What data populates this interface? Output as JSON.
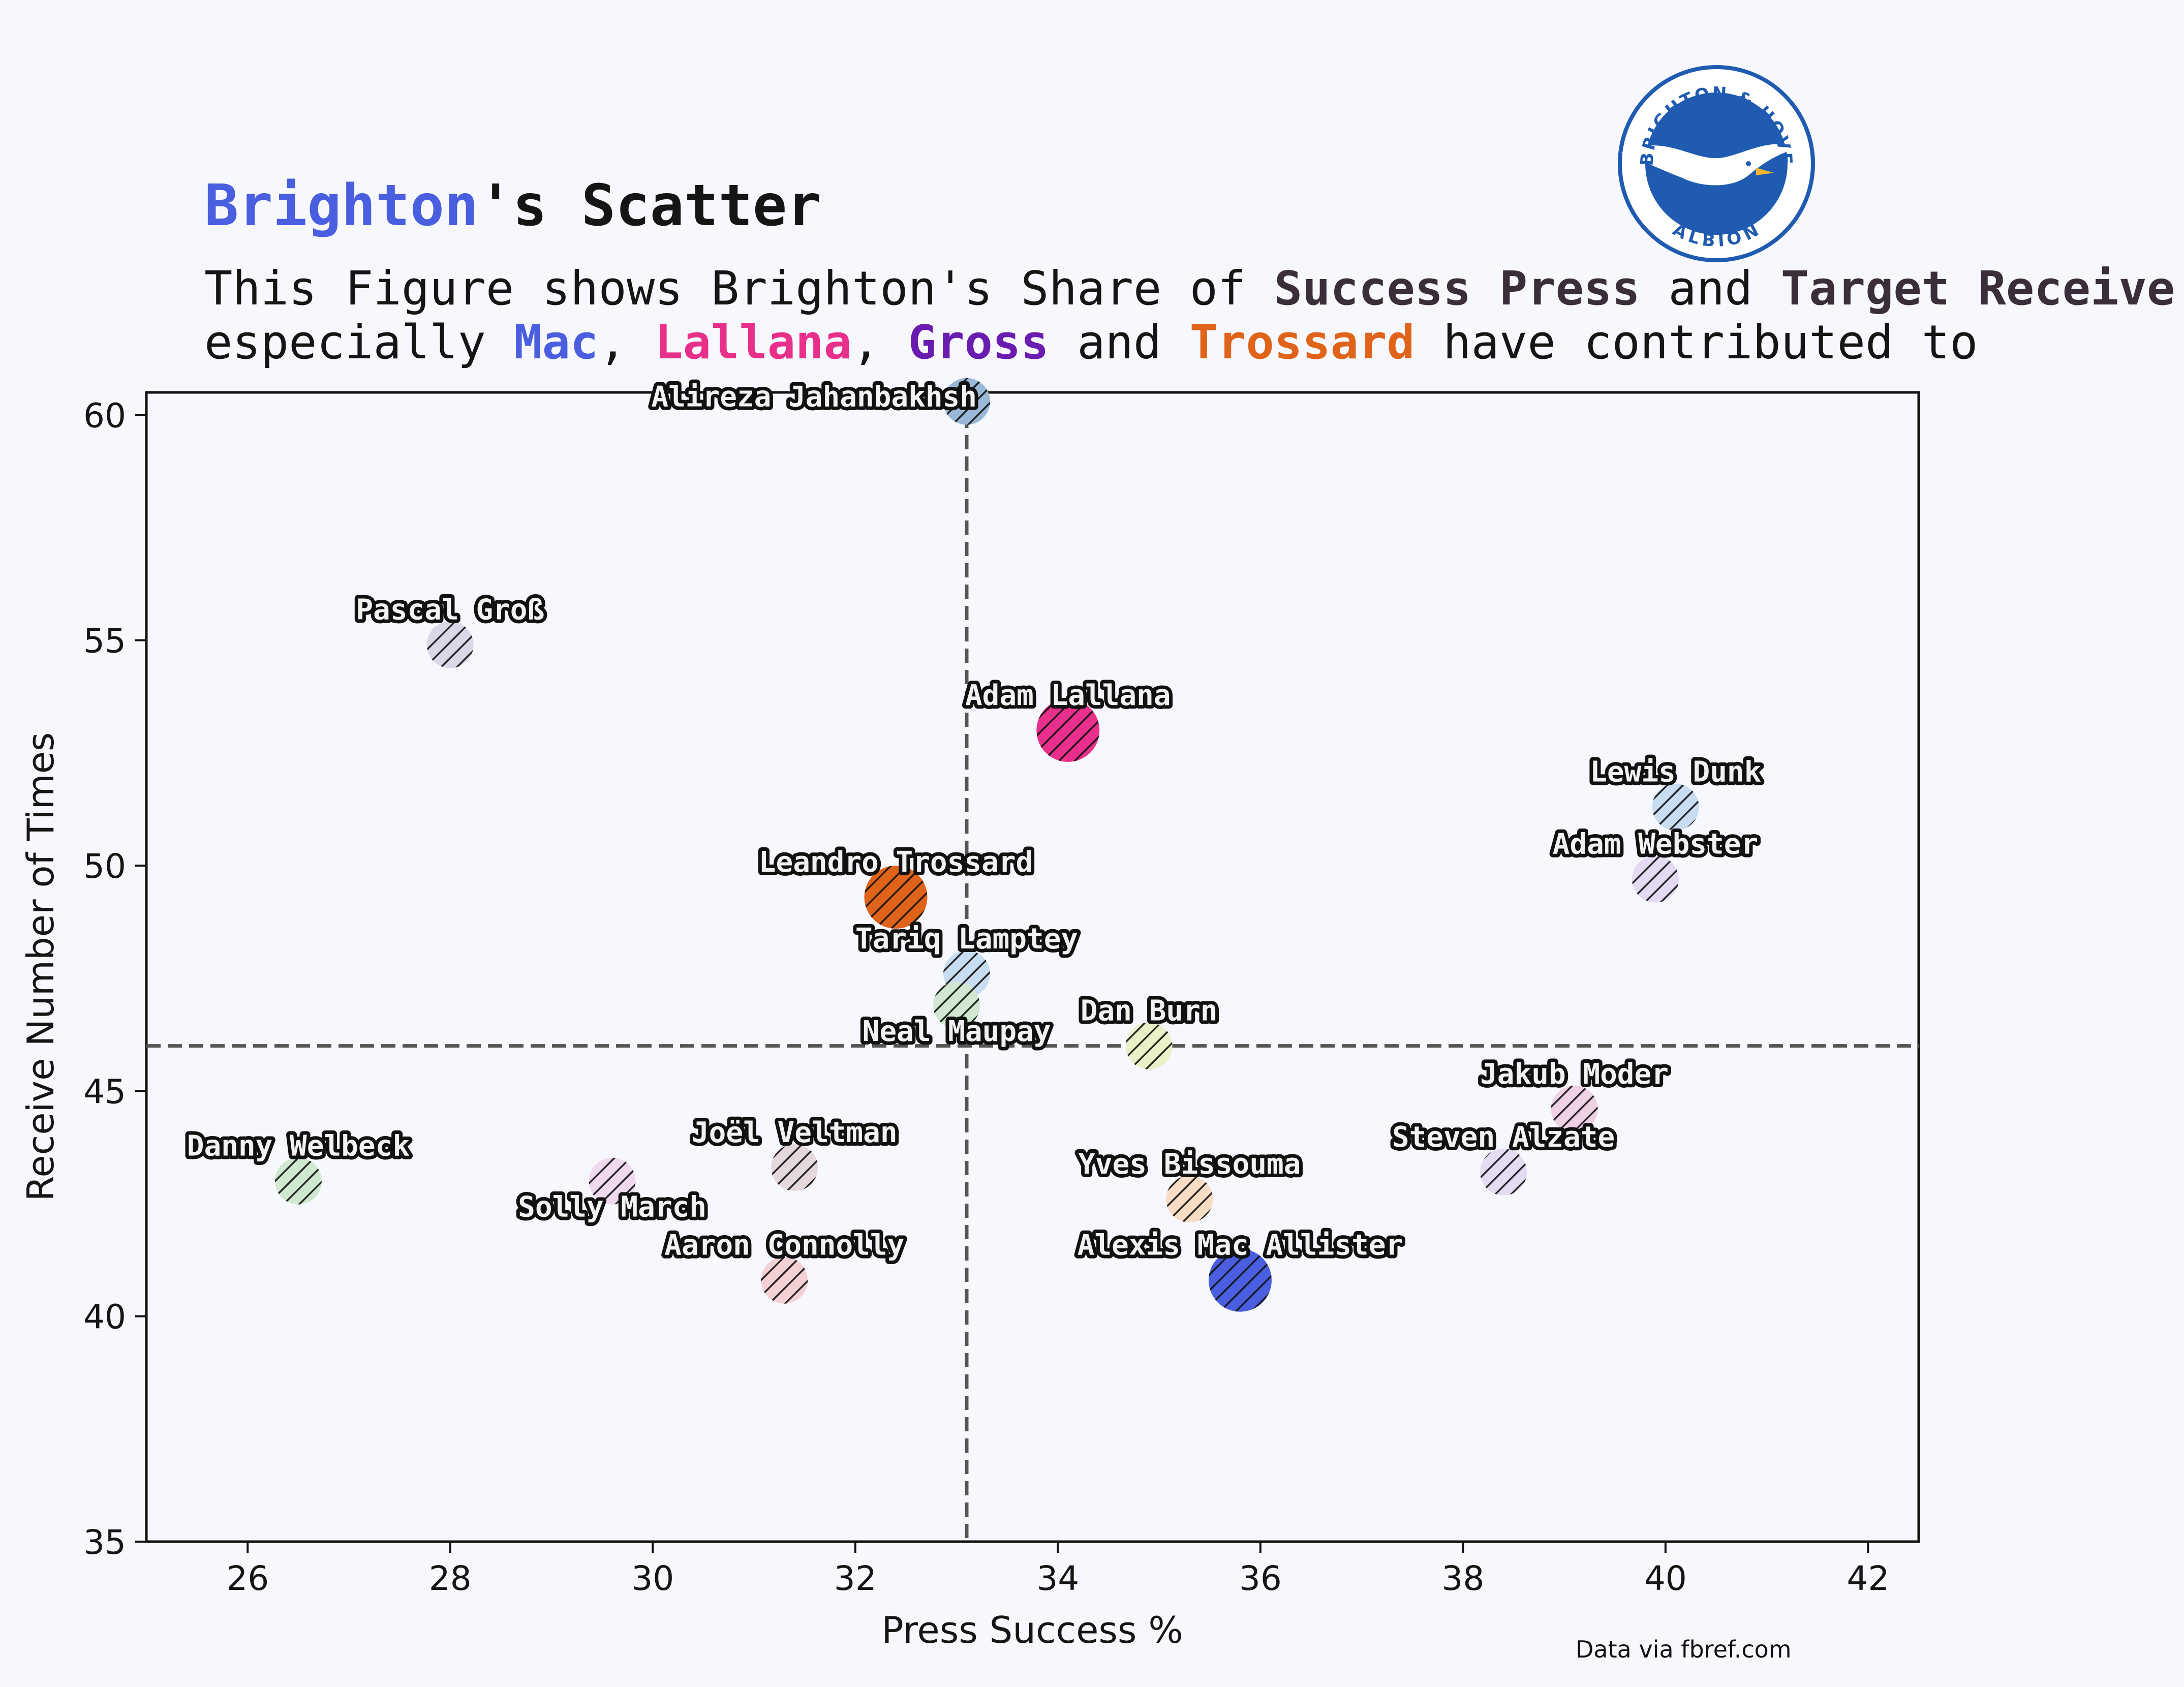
{
  "header": {
    "title_team": "Brighton",
    "title_rest": "'s Scatter",
    "subtitle_line1_pre": "This Figure shows Brighton's Share of ",
    "subtitle_bold1": "Success Press",
    "subtitle_and": " and ",
    "subtitle_bold2": "Target Receive",
    "subtitle_end": ".",
    "subtitle_line2_pre": "especially ",
    "name_mac": "Mac",
    "comma1": ", ",
    "name_lallana": "Lallana",
    "comma2": ", ",
    "name_gross": "Gross",
    "and2": " and ",
    "name_trossard": "Trossard",
    "subtitle_line2_post": " have contributed to"
  },
  "logo": {
    "text_top": "BRIGHTON & HOVE",
    "text_bottom": "ALBION",
    "icon": "seagull-crest-icon",
    "colors": {
      "primary": "#1f5bb0",
      "ring": "#ffffff"
    }
  },
  "credit": "Data via fbref.com",
  "colors": {
    "background": "#f7f8fd",
    "accent": "#4a5ee0",
    "lallana": "#e8308a",
    "gross": "#6a1bb0",
    "trossard": "#e0631a"
  },
  "chart_data": {
    "type": "scatter",
    "xlabel": "Press Success %",
    "ylabel": "Receive Number of Times",
    "xlim": [
      25,
      42.5
    ],
    "ylim": [
      35,
      60.5
    ],
    "xticks": [
      26,
      28,
      30,
      32,
      34,
      36,
      38,
      40,
      42
    ],
    "yticks": [
      35,
      40,
      45,
      50,
      55,
      60
    ],
    "reference_lines": {
      "x": 33.1,
      "y": 46
    },
    "grid": false,
    "points": [
      {
        "name": "Alireza Jahanbakhsh",
        "x": 33.1,
        "y": 60.3,
        "color": "#9ab8d8",
        "size": "small",
        "label_pos": "left"
      },
      {
        "name": "Pascal Groß",
        "x": 28.0,
        "y": 54.9,
        "color": "#d8d8e8",
        "size": "small",
        "label_pos": "above"
      },
      {
        "name": "Adam Lallana",
        "x": 34.1,
        "y": 53.0,
        "color": "#e8308a",
        "size": "large",
        "label_pos": "above"
      },
      {
        "name": "Lewis Dunk",
        "x": 40.1,
        "y": 51.3,
        "color": "#c8dcf2",
        "size": "small",
        "label_pos": "above"
      },
      {
        "name": "Adam Webster",
        "x": 39.9,
        "y": 49.7,
        "color": "#e4daf4",
        "size": "small",
        "label_pos": "above"
      },
      {
        "name": "Leandro Trossard",
        "x": 32.4,
        "y": 49.3,
        "color": "#e0631a",
        "size": "large",
        "label_pos": "above"
      },
      {
        "name": "Tariq Lamptey",
        "x": 33.1,
        "y": 47.6,
        "color": "#c8dcf2",
        "size": "small",
        "label_pos": "above"
      },
      {
        "name": "Neal Maupay",
        "x": 33.0,
        "y": 46.9,
        "color": "#cfe8cf",
        "size": "small",
        "label_pos": "below"
      },
      {
        "name": "Dan Burn",
        "x": 34.9,
        "y": 46.0,
        "color": "#eaf0c8",
        "size": "small",
        "label_pos": "above"
      },
      {
        "name": "Jakub Moder",
        "x": 39.1,
        "y": 44.6,
        "color": "#f0d0e4",
        "size": "small",
        "label_pos": "above"
      },
      {
        "name": "Danny Welbeck",
        "x": 26.5,
        "y": 43.0,
        "color": "#cfe8cf",
        "size": "small",
        "label_pos": "above"
      },
      {
        "name": "Solly March",
        "x": 29.6,
        "y": 43.0,
        "color": "#f0d8ee",
        "size": "small",
        "label_pos": "below"
      },
      {
        "name": "Joël Veltman",
        "x": 31.4,
        "y": 43.3,
        "color": "#e4d8dc",
        "size": "small",
        "label_pos": "above"
      },
      {
        "name": "Steven Alzate",
        "x": 38.4,
        "y": 43.2,
        "color": "#e4dcf2",
        "size": "small",
        "label_pos": "above"
      },
      {
        "name": "Yves Bissouma",
        "x": 35.3,
        "y": 42.6,
        "color": "#f8dcc4",
        "size": "small",
        "label_pos": "above"
      },
      {
        "name": "Aaron Connolly",
        "x": 31.3,
        "y": 40.8,
        "color": "#f4d0d4",
        "size": "small",
        "label_pos": "above"
      },
      {
        "name": "Alexis Mac Allister",
        "x": 35.8,
        "y": 40.8,
        "color": "#4a5ee0",
        "size": "large",
        "label_pos": "above"
      }
    ]
  }
}
